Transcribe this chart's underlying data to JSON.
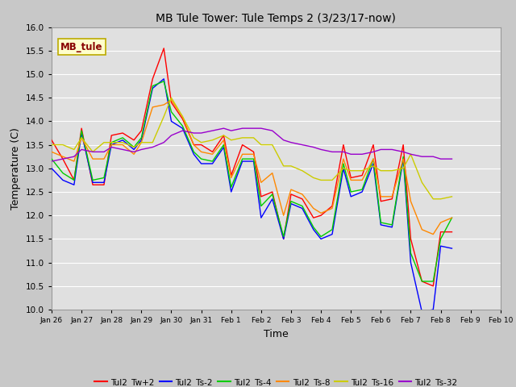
{
  "title": "MB Tule Tower: Tule Temps 2 (3/23/17-now)",
  "xlabel": "Time",
  "ylabel": "Temperature (C)",
  "ylim": [
    10.0,
    16.0
  ],
  "yticks": [
    10.0,
    10.5,
    11.0,
    11.5,
    12.0,
    12.5,
    13.0,
    13.5,
    14.0,
    14.5,
    15.0,
    15.5,
    16.0
  ],
  "fig_bg_color": "#c8c8c8",
  "plot_bg_color": "#e0e0e0",
  "grid_color": "#ffffff",
  "legend_label": "MB_tule",
  "legend_box_facecolor": "#ffffcc",
  "legend_box_edgecolor": "#bbaa00",
  "legend_text_color": "#880000",
  "series_colors": [
    "#ff0000",
    "#0000ff",
    "#00cc00",
    "#ff8800",
    "#cccc00",
    "#9900cc"
  ],
  "series_labels": [
    "Tul2_Tw+2",
    "Tul2_Ts-2",
    "Tul2_Ts-4",
    "Tul2_Ts-8",
    "Tul2_Ts-16",
    "Tul2_Ts-32"
  ],
  "x_start": 0,
  "x_end": 15.0,
  "xtick_positions": [
    0,
    1,
    2,
    3,
    4,
    5,
    6,
    7,
    8,
    9,
    10,
    11,
    12,
    13,
    14,
    15
  ],
  "xtick_labels": [
    "Jan 26",
    "Jan 27",
    "Jan 28",
    "Jan 29",
    "Jan 30",
    "Jan 31",
    "Feb 1",
    "Feb 2",
    "Feb 3",
    "Feb 4",
    "Feb 5",
    "Feb 6",
    "Feb 7",
    "Feb 8",
    "Feb 9",
    "Feb 10"
  ],
  "tw2": [
    13.6,
    13.2,
    12.75,
    13.85,
    12.65,
    12.65,
    13.7,
    13.75,
    13.6,
    13.8,
    14.9,
    15.55,
    14.4,
    14.05,
    13.5,
    13.5,
    13.35,
    13.7,
    12.85,
    13.5,
    13.35,
    12.4,
    12.5,
    11.5,
    12.45,
    12.35,
    11.95,
    12.0,
    12.2,
    13.5,
    12.8,
    12.85,
    13.5,
    12.3,
    12.35,
    13.5,
    11.5,
    10.6,
    10.5,
    11.65,
    11.65
  ],
  "ts2": [
    13.0,
    12.75,
    12.65,
    13.75,
    12.7,
    12.7,
    13.5,
    13.6,
    13.4,
    13.6,
    14.7,
    14.9,
    14.0,
    13.85,
    13.3,
    13.1,
    13.1,
    13.45,
    12.5,
    13.15,
    13.15,
    11.95,
    12.35,
    11.5,
    12.25,
    12.15,
    11.7,
    11.5,
    11.6,
    13.0,
    12.4,
    12.5,
    13.1,
    11.8,
    11.75,
    13.2,
    11.0,
    9.95,
    10.0,
    11.35,
    11.3
  ],
  "ts4": [
    13.2,
    12.9,
    12.75,
    13.8,
    12.75,
    12.8,
    13.55,
    13.65,
    13.45,
    13.65,
    14.75,
    14.85,
    14.2,
    13.9,
    13.35,
    13.2,
    13.15,
    13.5,
    12.6,
    13.2,
    13.2,
    12.2,
    12.45,
    11.55,
    12.3,
    12.2,
    11.75,
    11.55,
    11.7,
    13.1,
    12.5,
    12.55,
    13.2,
    11.85,
    11.8,
    13.25,
    11.2,
    10.6,
    10.6,
    11.5,
    11.95
  ],
  "ts8": [
    13.35,
    13.25,
    13.15,
    13.65,
    13.2,
    13.2,
    13.5,
    13.5,
    13.3,
    13.55,
    14.3,
    14.35,
    14.45,
    14.1,
    13.5,
    13.35,
    13.3,
    13.6,
    12.8,
    13.3,
    13.3,
    12.7,
    12.9,
    12.0,
    12.55,
    12.45,
    12.15,
    12.05,
    12.15,
    13.2,
    12.75,
    12.75,
    13.2,
    12.4,
    12.4,
    13.2,
    12.3,
    11.7,
    11.6,
    11.85,
    11.95
  ],
  "ts16": [
    13.5,
    13.5,
    13.4,
    13.65,
    13.35,
    13.55,
    13.55,
    13.55,
    13.45,
    13.55,
    13.55,
    14.1,
    14.5,
    14.1,
    13.65,
    13.55,
    13.6,
    13.7,
    13.6,
    13.65,
    13.65,
    13.5,
    13.5,
    13.05,
    13.05,
    12.95,
    12.8,
    12.75,
    12.75,
    13.0,
    12.95,
    12.95,
    13.05,
    12.95,
    12.95,
    13.0,
    13.3,
    12.7,
    12.35,
    12.35,
    12.4
  ],
  "ts32": [
    13.15,
    13.2,
    13.25,
    13.4,
    13.35,
    13.35,
    13.45,
    13.4,
    13.35,
    13.4,
    13.45,
    13.55,
    13.7,
    13.8,
    13.75,
    13.75,
    13.8,
    13.85,
    13.8,
    13.85,
    13.85,
    13.85,
    13.8,
    13.6,
    13.55,
    13.5,
    13.45,
    13.4,
    13.35,
    13.35,
    13.3,
    13.3,
    13.35,
    13.4,
    13.4,
    13.35,
    13.3,
    13.25,
    13.25,
    13.2,
    13.2
  ],
  "x_vals": [
    0.0,
    0.375,
    0.75,
    1.0,
    1.375,
    1.75,
    2.0,
    2.375,
    2.75,
    3.0,
    3.375,
    3.75,
    4.0,
    4.375,
    4.75,
    5.0,
    5.375,
    5.75,
    6.0,
    6.375,
    6.75,
    7.0,
    7.375,
    7.75,
    8.0,
    8.375,
    8.75,
    9.0,
    9.375,
    9.75,
    10.0,
    10.375,
    10.75,
    11.0,
    11.375,
    11.75,
    12.0,
    12.375,
    12.75,
    13.0,
    13.375
  ]
}
